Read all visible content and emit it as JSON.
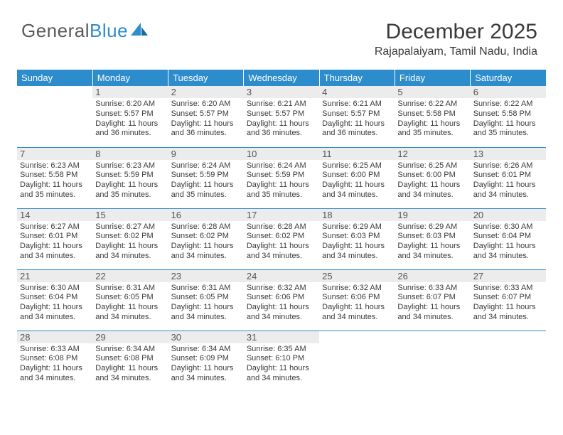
{
  "logo": {
    "text1": "General",
    "text2": "Blue"
  },
  "title": "December 2025",
  "subtitle": "Rajapalaiyam, Tamil Nadu, India",
  "colors": {
    "brand_blue": "#2d8ccb",
    "text": "#3a3a3a",
    "daybar": "#ececec",
    "bg": "#ffffff"
  },
  "calendar": {
    "type": "table",
    "columns": [
      "Sunday",
      "Monday",
      "Tuesday",
      "Wednesday",
      "Thursday",
      "Friday",
      "Saturday"
    ],
    "font_day": 13,
    "font_info": 11,
    "weeks": [
      [
        {
          "day": "",
          "sunrise": "",
          "sunset": "",
          "daylight": ""
        },
        {
          "day": "1",
          "sunrise": "Sunrise: 6:20 AM",
          "sunset": "Sunset: 5:57 PM",
          "daylight": "Daylight: 11 hours and 36 minutes."
        },
        {
          "day": "2",
          "sunrise": "Sunrise: 6:20 AM",
          "sunset": "Sunset: 5:57 PM",
          "daylight": "Daylight: 11 hours and 36 minutes."
        },
        {
          "day": "3",
          "sunrise": "Sunrise: 6:21 AM",
          "sunset": "Sunset: 5:57 PM",
          "daylight": "Daylight: 11 hours and 36 minutes."
        },
        {
          "day": "4",
          "sunrise": "Sunrise: 6:21 AM",
          "sunset": "Sunset: 5:57 PM",
          "daylight": "Daylight: 11 hours and 36 minutes."
        },
        {
          "day": "5",
          "sunrise": "Sunrise: 6:22 AM",
          "sunset": "Sunset: 5:58 PM",
          "daylight": "Daylight: 11 hours and 35 minutes."
        },
        {
          "day": "6",
          "sunrise": "Sunrise: 6:22 AM",
          "sunset": "Sunset: 5:58 PM",
          "daylight": "Daylight: 11 hours and 35 minutes."
        }
      ],
      [
        {
          "day": "7",
          "sunrise": "Sunrise: 6:23 AM",
          "sunset": "Sunset: 5:58 PM",
          "daylight": "Daylight: 11 hours and 35 minutes."
        },
        {
          "day": "8",
          "sunrise": "Sunrise: 6:23 AM",
          "sunset": "Sunset: 5:59 PM",
          "daylight": "Daylight: 11 hours and 35 minutes."
        },
        {
          "day": "9",
          "sunrise": "Sunrise: 6:24 AM",
          "sunset": "Sunset: 5:59 PM",
          "daylight": "Daylight: 11 hours and 35 minutes."
        },
        {
          "day": "10",
          "sunrise": "Sunrise: 6:24 AM",
          "sunset": "Sunset: 5:59 PM",
          "daylight": "Daylight: 11 hours and 35 minutes."
        },
        {
          "day": "11",
          "sunrise": "Sunrise: 6:25 AM",
          "sunset": "Sunset: 6:00 PM",
          "daylight": "Daylight: 11 hours and 34 minutes."
        },
        {
          "day": "12",
          "sunrise": "Sunrise: 6:25 AM",
          "sunset": "Sunset: 6:00 PM",
          "daylight": "Daylight: 11 hours and 34 minutes."
        },
        {
          "day": "13",
          "sunrise": "Sunrise: 6:26 AM",
          "sunset": "Sunset: 6:01 PM",
          "daylight": "Daylight: 11 hours and 34 minutes."
        }
      ],
      [
        {
          "day": "14",
          "sunrise": "Sunrise: 6:27 AM",
          "sunset": "Sunset: 6:01 PM",
          "daylight": "Daylight: 11 hours and 34 minutes."
        },
        {
          "day": "15",
          "sunrise": "Sunrise: 6:27 AM",
          "sunset": "Sunset: 6:02 PM",
          "daylight": "Daylight: 11 hours and 34 minutes."
        },
        {
          "day": "16",
          "sunrise": "Sunrise: 6:28 AM",
          "sunset": "Sunset: 6:02 PM",
          "daylight": "Daylight: 11 hours and 34 minutes."
        },
        {
          "day": "17",
          "sunrise": "Sunrise: 6:28 AM",
          "sunset": "Sunset: 6:02 PM",
          "daylight": "Daylight: 11 hours and 34 minutes."
        },
        {
          "day": "18",
          "sunrise": "Sunrise: 6:29 AM",
          "sunset": "Sunset: 6:03 PM",
          "daylight": "Daylight: 11 hours and 34 minutes."
        },
        {
          "day": "19",
          "sunrise": "Sunrise: 6:29 AM",
          "sunset": "Sunset: 6:03 PM",
          "daylight": "Daylight: 11 hours and 34 minutes."
        },
        {
          "day": "20",
          "sunrise": "Sunrise: 6:30 AM",
          "sunset": "Sunset: 6:04 PM",
          "daylight": "Daylight: 11 hours and 34 minutes."
        }
      ],
      [
        {
          "day": "21",
          "sunrise": "Sunrise: 6:30 AM",
          "sunset": "Sunset: 6:04 PM",
          "daylight": "Daylight: 11 hours and 34 minutes."
        },
        {
          "day": "22",
          "sunrise": "Sunrise: 6:31 AM",
          "sunset": "Sunset: 6:05 PM",
          "daylight": "Daylight: 11 hours and 34 minutes."
        },
        {
          "day": "23",
          "sunrise": "Sunrise: 6:31 AM",
          "sunset": "Sunset: 6:05 PM",
          "daylight": "Daylight: 11 hours and 34 minutes."
        },
        {
          "day": "24",
          "sunrise": "Sunrise: 6:32 AM",
          "sunset": "Sunset: 6:06 PM",
          "daylight": "Daylight: 11 hours and 34 minutes."
        },
        {
          "day": "25",
          "sunrise": "Sunrise: 6:32 AM",
          "sunset": "Sunset: 6:06 PM",
          "daylight": "Daylight: 11 hours and 34 minutes."
        },
        {
          "day": "26",
          "sunrise": "Sunrise: 6:33 AM",
          "sunset": "Sunset: 6:07 PM",
          "daylight": "Daylight: 11 hours and 34 minutes."
        },
        {
          "day": "27",
          "sunrise": "Sunrise: 6:33 AM",
          "sunset": "Sunset: 6:07 PM",
          "daylight": "Daylight: 11 hours and 34 minutes."
        }
      ],
      [
        {
          "day": "28",
          "sunrise": "Sunrise: 6:33 AM",
          "sunset": "Sunset: 6:08 PM",
          "daylight": "Daylight: 11 hours and 34 minutes."
        },
        {
          "day": "29",
          "sunrise": "Sunrise: 6:34 AM",
          "sunset": "Sunset: 6:08 PM",
          "daylight": "Daylight: 11 hours and 34 minutes."
        },
        {
          "day": "30",
          "sunrise": "Sunrise: 6:34 AM",
          "sunset": "Sunset: 6:09 PM",
          "daylight": "Daylight: 11 hours and 34 minutes."
        },
        {
          "day": "31",
          "sunrise": "Sunrise: 6:35 AM",
          "sunset": "Sunset: 6:10 PM",
          "daylight": "Daylight: 11 hours and 34 minutes."
        },
        {
          "day": "",
          "sunrise": "",
          "sunset": "",
          "daylight": ""
        },
        {
          "day": "",
          "sunrise": "",
          "sunset": "",
          "daylight": ""
        },
        {
          "day": "",
          "sunrise": "",
          "sunset": "",
          "daylight": ""
        }
      ]
    ]
  }
}
